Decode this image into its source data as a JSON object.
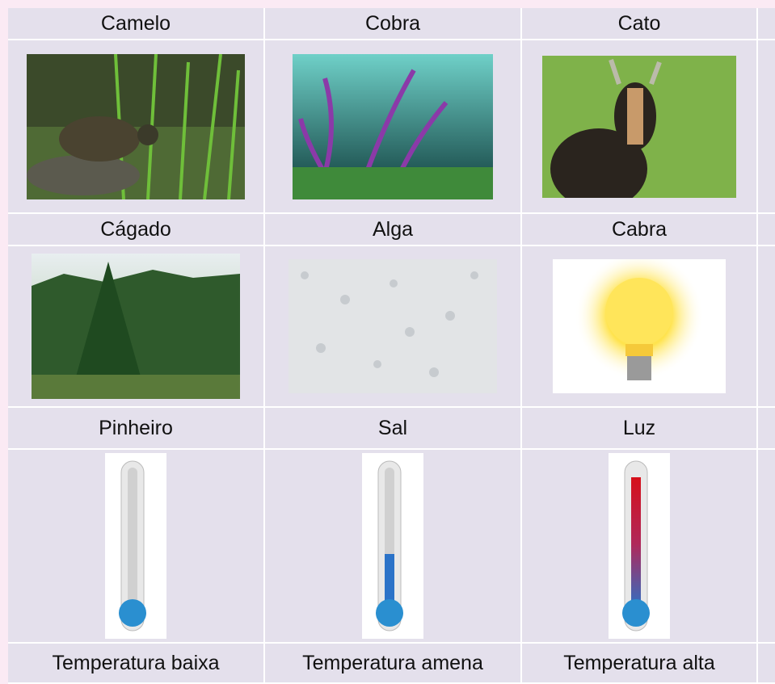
{
  "table": {
    "label_rows": [
      [
        "Camelo",
        "Cobra",
        "Cato"
      ],
      [
        "Cágado",
        "Alga",
        "Cabra"
      ],
      [
        "Pinheiro",
        "Sal",
        "Luz"
      ],
      [
        "Temperatura baixa",
        "Temperatura amena",
        "Temperatura alta"
      ]
    ]
  }
}
